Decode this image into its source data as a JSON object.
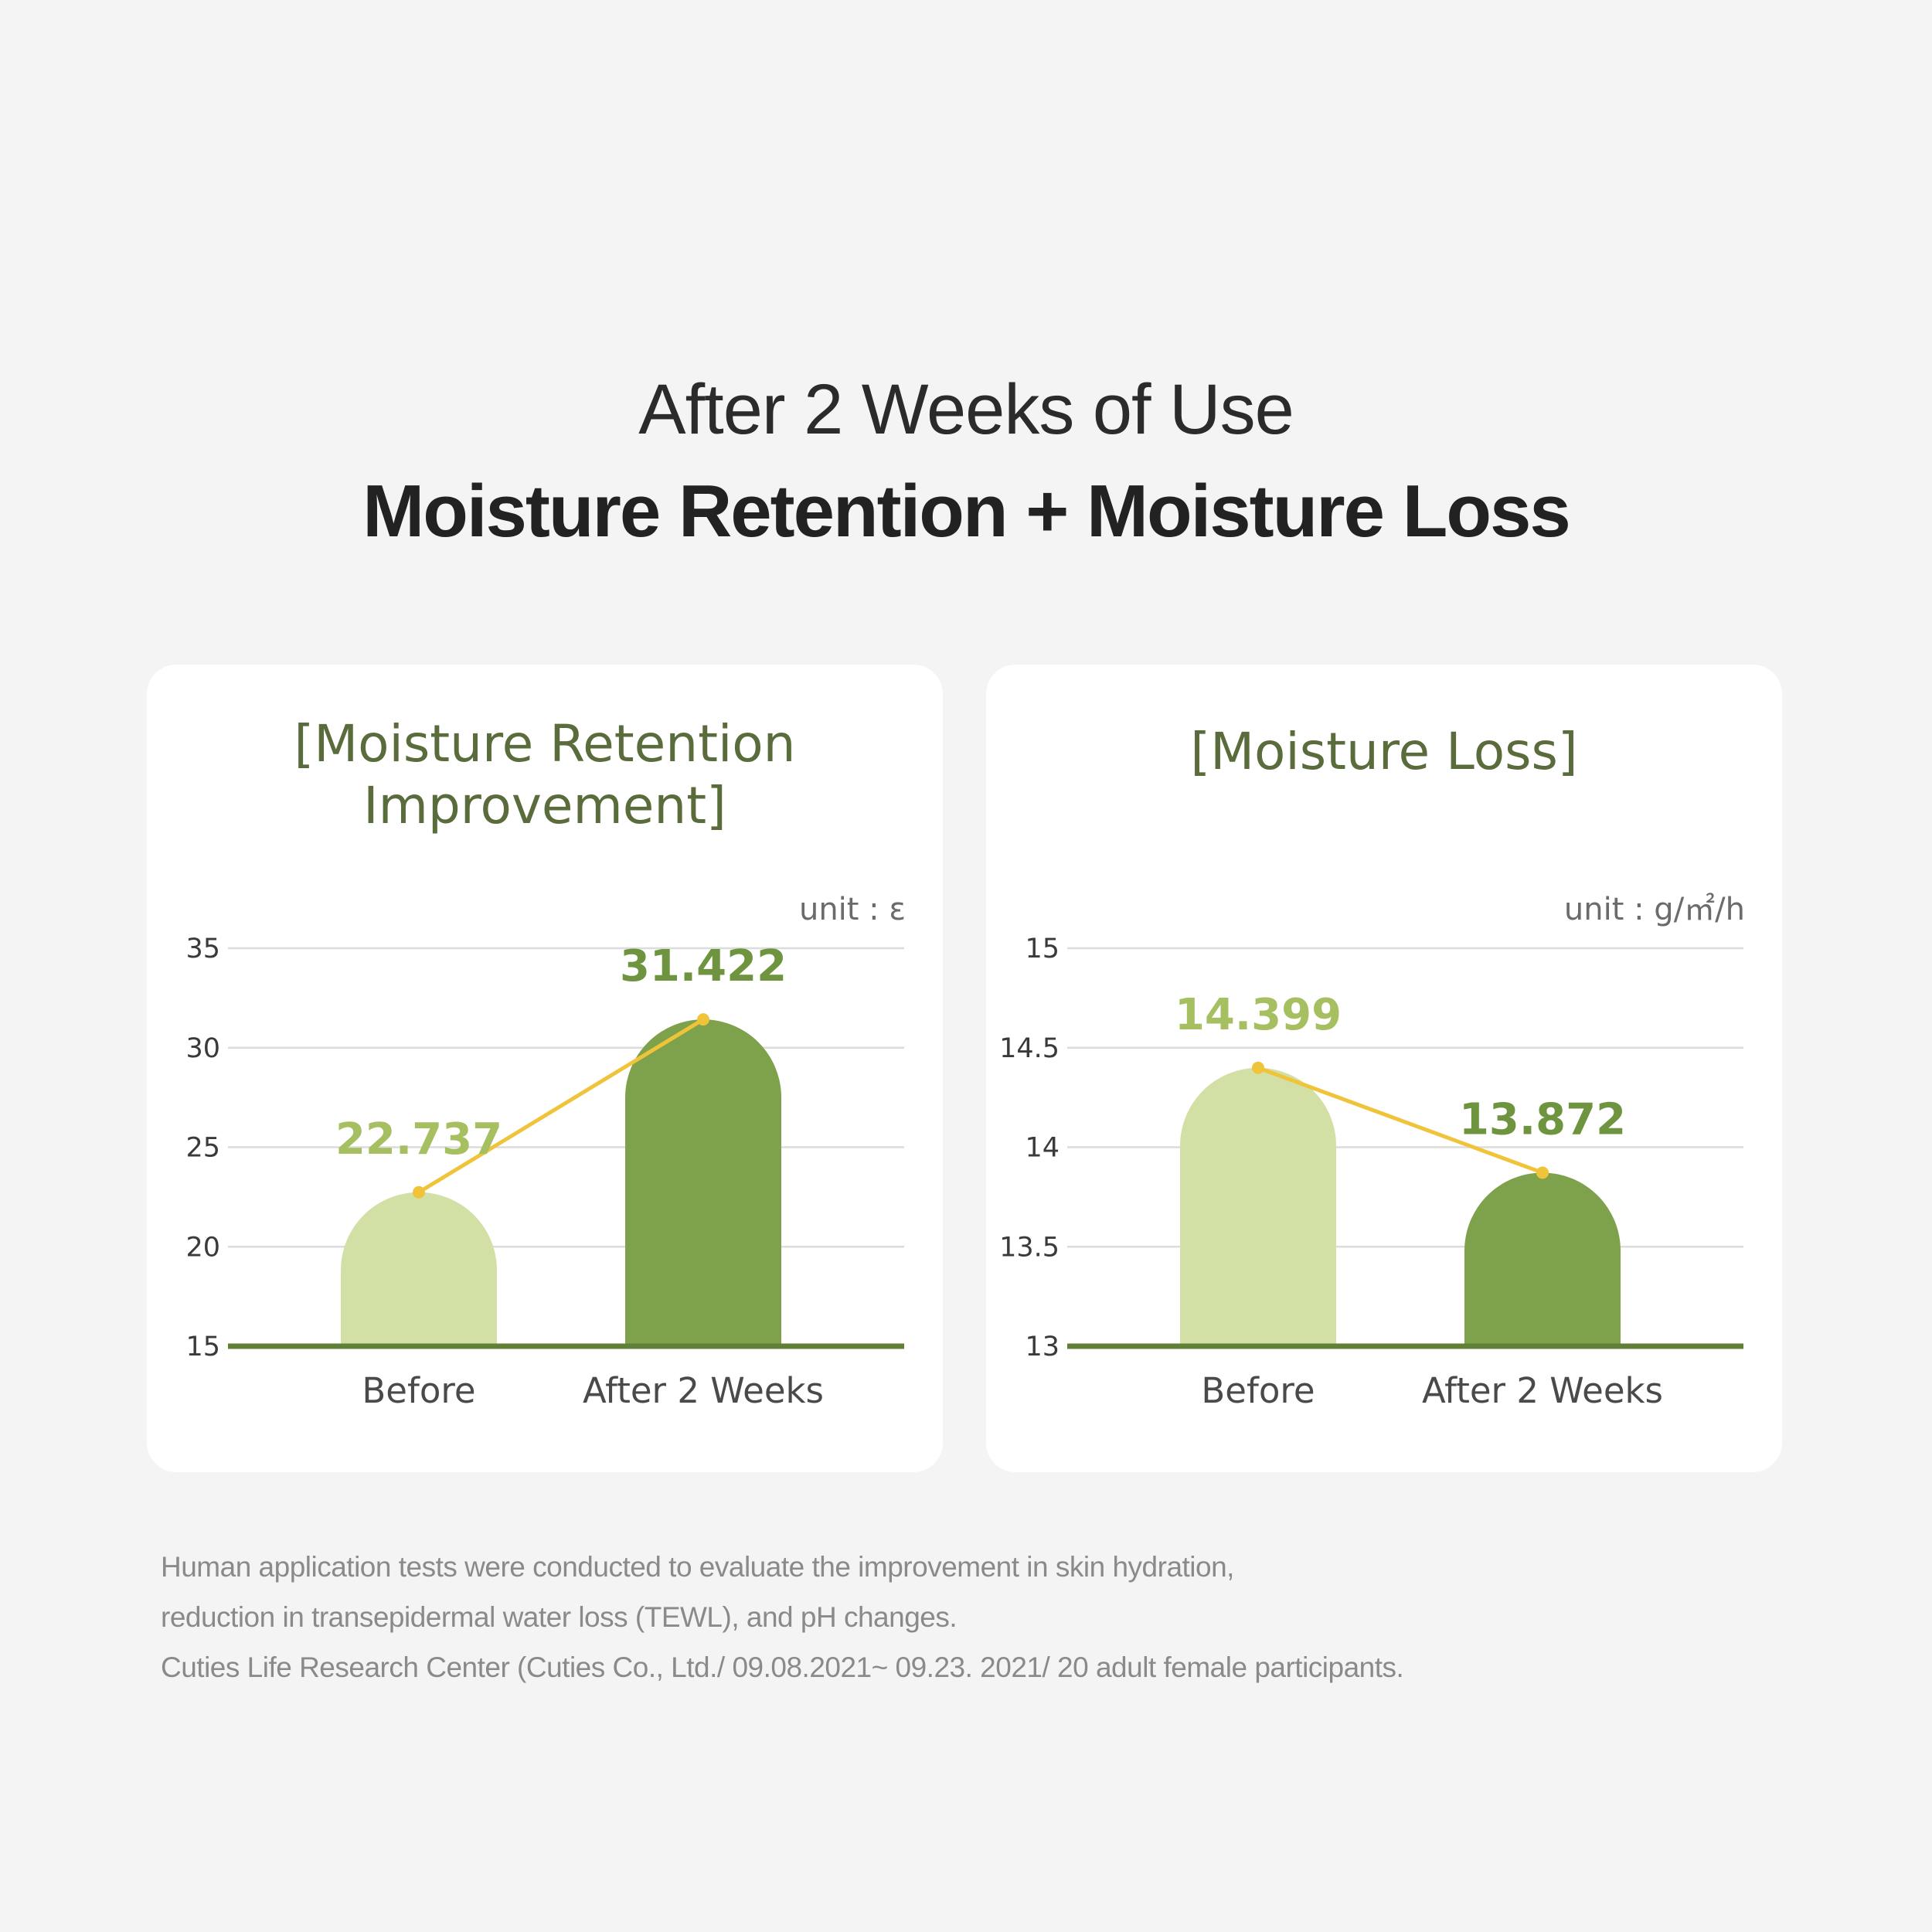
{
  "heading": {
    "subtitle": "After 2 Weeks of Use",
    "title": "Moisture Retention + Moisture Loss"
  },
  "colors": {
    "before_bar": "#d2e0a6",
    "after_bar": "#7ea14b",
    "baseline": "#5f8035",
    "trend_line": "#f0c43a",
    "before_value": "#a6bf60",
    "after_value": "#6f9440",
    "gridline": "#dcdcdc"
  },
  "chart_data": [
    {
      "type": "bar",
      "title_lines": [
        "[Moisture Retention",
        "Improvement]"
      ],
      "unit": "unit : ε",
      "categories": [
        "Before",
        "After 2 Weeks"
      ],
      "values": [
        22.737,
        31.422
      ],
      "value_labels": [
        "22.737",
        "31.422"
      ],
      "ylim": [
        15,
        35
      ],
      "yticks": [
        15,
        20,
        25,
        30,
        35
      ],
      "ytick_labels": [
        "15",
        "20",
        "25",
        "30",
        "35"
      ],
      "trend_line": true,
      "grid": true
    },
    {
      "type": "bar",
      "title_lines": [
        "[Moisture Loss]"
      ],
      "unit": "unit : g/㎡/h",
      "categories": [
        "Before",
        "After 2 Weeks"
      ],
      "values": [
        14.399,
        13.872
      ],
      "value_labels": [
        "14.399",
        "13.872"
      ],
      "ylim": [
        13,
        15
      ],
      "yticks": [
        13,
        13.5,
        14,
        14.5,
        15
      ],
      "ytick_labels": [
        "13",
        "13.5",
        "14",
        "14.5",
        "15"
      ],
      "trend_line": true,
      "grid": true
    }
  ],
  "footnote": {
    "line1": "Human application tests were conducted to evaluate the improvement in skin hydration,",
    "line2": "reduction in transepidermal water loss (TEWL), and pH changes.",
    "line3": "Cuties Life Research Center (Cuties Co., Ltd./ 09.08.2021~ 09.23. 2021/ 20 adult female participants."
  }
}
